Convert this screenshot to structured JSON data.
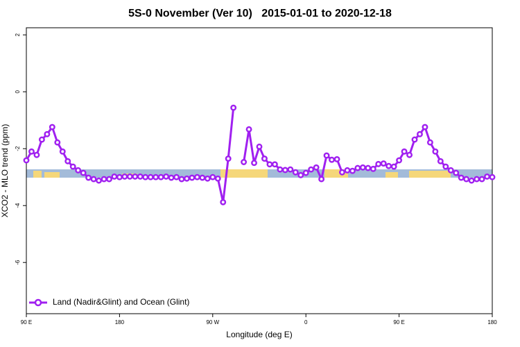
{
  "chart_data": {
    "type": "line",
    "title": "5S-0 November (Ver 10)   2015-01-01 to 2020-12-18",
    "xlabel": "Longitude (deg E)",
    "ylabel": "XCO2 - MLO trend (ppm)",
    "x": [
      90,
      95,
      100,
      105,
      110,
      115,
      120,
      125,
      130,
      135,
      140,
      145,
      150,
      155,
      160,
      165,
      170,
      175,
      180,
      185,
      190,
      195,
      200,
      205,
      210,
      215,
      220,
      225,
      230,
      235,
      240,
      245,
      250,
      255,
      260,
      265,
      270,
      275,
      280,
      285,
      290,
      295,
      300,
      305,
      310,
      315,
      320,
      325,
      330,
      335,
      340,
      345,
      350,
      355,
      360,
      365,
      370,
      375,
      380,
      385,
      390,
      395,
      400,
      405,
      410,
      415,
      420,
      425,
      430,
      435,
      440,
      445,
      450,
      455,
      460,
      465,
      470,
      475,
      480,
      485,
      490,
      495,
      500,
      505,
      510,
      515,
      520,
      525,
      530,
      535,
      540
    ],
    "series": [
      {
        "name": "Land (Nadir&Glint) and Ocean (Glint)",
        "color": "#a020f0",
        "values": [
          -2.41,
          -2.1,
          -2.22,
          -1.68,
          -1.49,
          -1.24,
          -1.78,
          -2.1,
          -2.44,
          -2.63,
          -2.76,
          -2.85,
          -3.02,
          -3.07,
          -3.12,
          -3.07,
          -3.07,
          -2.98,
          -3.0,
          -2.98,
          -2.98,
          -2.98,
          -2.98,
          -3.0,
          -3.0,
          -3.0,
          -3.0,
          -2.98,
          -3.02,
          -3.0,
          -3.07,
          -3.05,
          -3.02,
          -3.0,
          -3.02,
          -3.05,
          -3.0,
          -3.05,
          -3.88,
          -2.35,
          -0.56,
          null,
          -2.47,
          -1.32,
          -2.5,
          -1.93,
          -2.35,
          -2.55,
          -2.55,
          -2.73,
          -2.75,
          -2.73,
          -2.83,
          -2.93,
          -2.85,
          -2.73,
          -2.66,
          -3.07,
          -2.24,
          -2.39,
          -2.37,
          -2.83,
          -2.76,
          -2.78,
          -2.68,
          -2.66,
          -2.68,
          -2.71,
          -2.54,
          -2.52,
          -2.61,
          -2.63,
          -2.41,
          -2.1,
          -2.22,
          -1.68,
          -1.49,
          -1.24,
          -1.78,
          -2.1,
          -2.44,
          -2.63,
          -2.76,
          -2.85,
          -3.02,
          -3.07,
          -3.12,
          -3.07,
          -3.07,
          -2.98,
          -3.0
        ]
      }
    ],
    "xlim": [
      90,
      540
    ],
    "xticks": [
      {
        "value": 90,
        "label": "90 E"
      },
      180,
      {
        "value": 270,
        "label": "90 W"
      },
      {
        "value": 360,
        "label": "0"
      },
      {
        "value": 450,
        "label": "90 E"
      },
      {
        "value": 540,
        "label": "180"
      }
    ],
    "ylim": [
      -7.8,
      2.25
    ],
    "yticks": [
      2,
      0,
      -2,
      -4,
      -6
    ],
    "grid": false,
    "legend": "bottom-left"
  }
}
